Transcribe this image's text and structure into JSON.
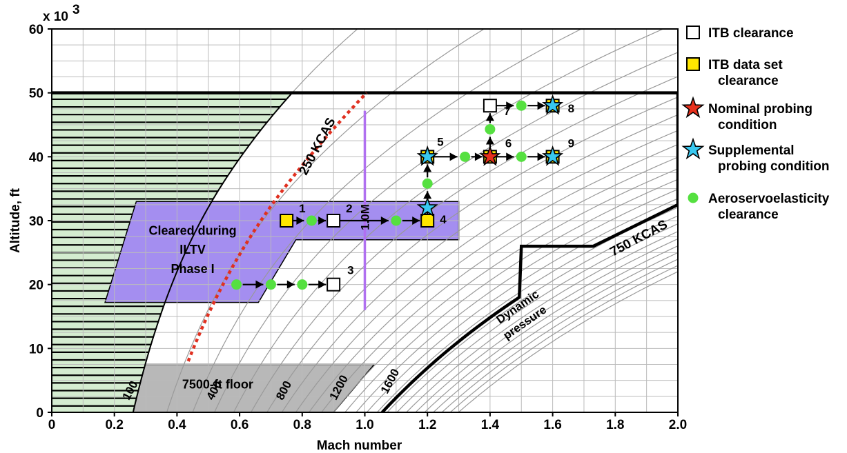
{
  "chart_data": {
    "type": "scatter",
    "title": "",
    "xlabel": "Mach number",
    "ylabel": "Altitude, ft",
    "y_multiplier_label": "x 10",
    "y_multiplier_exp": "3",
    "xlim": [
      0,
      2.0
    ],
    "ylim": [
      0,
      60
    ],
    "x_ticks": [
      "0",
      "0.2",
      "0.4",
      "0.6",
      "0.8",
      "1.0",
      "1.2",
      "1.4",
      "1.6",
      "1.8",
      "2.0"
    ],
    "y_ticks": [
      "0",
      "10",
      "20",
      "30",
      "40",
      "50",
      "60"
    ],
    "grid": true,
    "legend_position": "right",
    "dynamic_pressure_curves": [
      100,
      200,
      300,
      400,
      500,
      600,
      700,
      800,
      900,
      1000,
      1100,
      1200,
      1300,
      1400,
      1500,
      1600,
      1700,
      1800,
      1900,
      2000,
      2100,
      2200,
      2300,
      2400,
      2500
    ],
    "labeled_curves": [
      "100",
      "400",
      "800",
      "1200",
      "1600"
    ],
    "annotations": {
      "kcas_250": "250 KCAS",
      "kcas_750": "750 KCAS",
      "mach_1": "1.0M",
      "cleared_l1": "Cleared during",
      "cleared_l2": "ILTV",
      "cleared_l3": "Phase I",
      "floor": "7500-ft floor",
      "dynq_l1": "Dynamic",
      "dynq_l2": "pressure"
    },
    "legend": [
      {
        "marker": "open-square",
        "lines": [
          "ITB clearance"
        ]
      },
      {
        "marker": "yellow-square",
        "lines": [
          "ITB data set",
          "clearance"
        ]
      },
      {
        "marker": "red-star",
        "lines": [
          "Nominal probing",
          "condition"
        ]
      },
      {
        "marker": "blue-star",
        "lines": [
          "Supplemental",
          "probing condition"
        ]
      },
      {
        "marker": "green-dot",
        "lines": [
          "Aeroservoelasticity",
          "clearance"
        ]
      }
    ],
    "test_points": [
      {
        "label": "1",
        "mach": 0.75,
        "alt": 30,
        "marker": "yellow-square"
      },
      {
        "label": "2",
        "mach": 0.9,
        "alt": 30,
        "marker": "open-square"
      },
      {
        "label": "3",
        "mach": 0.9,
        "alt": 20,
        "marker": "open-square"
      },
      {
        "label": "4",
        "mach": 1.2,
        "alt": 30,
        "marker": "yellow-square"
      },
      {
        "label": "5",
        "mach": 1.2,
        "alt": 40,
        "marker": "yellow-square"
      },
      {
        "label": "6",
        "mach": 1.4,
        "alt": 40,
        "marker": "yellow-square"
      },
      {
        "label": "7",
        "mach": 1.4,
        "alt": 48,
        "marker": "open-square"
      },
      {
        "label": "8",
        "mach": 1.6,
        "alt": 48,
        "marker": "yellow-square"
      },
      {
        "label": "9",
        "mach": 1.6,
        "alt": 40,
        "marker": "yellow-square"
      }
    ],
    "stars": [
      {
        "mach": 1.2,
        "alt": 32,
        "color": "blue"
      },
      {
        "mach": 1.2,
        "alt": 40,
        "color": "blue"
      },
      {
        "mach": 1.4,
        "alt": 40,
        "color": "red"
      },
      {
        "mach": 1.6,
        "alt": 48,
        "color": "blue"
      },
      {
        "mach": 1.6,
        "alt": 40,
        "color": "blue"
      }
    ],
    "ase_points": [
      {
        "mach": 0.59,
        "alt": 20
      },
      {
        "mach": 0.7,
        "alt": 20
      },
      {
        "mach": 0.8,
        "alt": 20
      },
      {
        "mach": 0.83,
        "alt": 30
      },
      {
        "mach": 1.1,
        "alt": 30
      },
      {
        "mach": 1.2,
        "alt": 35.8
      },
      {
        "mach": 1.32,
        "alt": 40
      },
      {
        "mach": 1.5,
        "alt": 40
      },
      {
        "mach": 1.4,
        "alt": 44.3
      },
      {
        "mach": 1.5,
        "alt": 48
      }
    ],
    "arrows": [
      {
        "from": [
          0.59,
          20
        ],
        "to": [
          0.7,
          20
        ]
      },
      {
        "from": [
          0.7,
          20
        ],
        "to": [
          0.8,
          20
        ]
      },
      {
        "from": [
          0.8,
          20
        ],
        "to": [
          0.9,
          20
        ]
      },
      {
        "from": [
          0.75,
          30
        ],
        "to": [
          0.83,
          30
        ]
      },
      {
        "from": [
          0.83,
          30
        ],
        "to": [
          0.9,
          30
        ]
      },
      {
        "from": [
          0.9,
          30
        ],
        "to": [
          1.1,
          30
        ]
      },
      {
        "from": [
          1.1,
          30
        ],
        "to": [
          1.2,
          30
        ]
      },
      {
        "from": [
          1.2,
          30
        ],
        "to": [
          1.2,
          35.8
        ]
      },
      {
        "from": [
          1.2,
          35.8
        ],
        "to": [
          1.2,
          40
        ]
      },
      {
        "from": [
          1.2,
          40
        ],
        "to": [
          1.32,
          40
        ]
      },
      {
        "from": [
          1.32,
          40
        ],
        "to": [
          1.4,
          40
        ]
      },
      {
        "from": [
          1.4,
          40
        ],
        "to": [
          1.5,
          40
        ]
      },
      {
        "from": [
          1.5,
          40
        ],
        "to": [
          1.6,
          40
        ]
      },
      {
        "from": [
          1.4,
          40
        ],
        "to": [
          1.4,
          44.3
        ]
      },
      {
        "from": [
          1.4,
          44.3
        ],
        "to": [
          1.4,
          48
        ]
      },
      {
        "from": [
          1.4,
          48
        ],
        "to": [
          1.5,
          48
        ]
      },
      {
        "from": [
          1.5,
          48
        ],
        "to": [
          1.6,
          48
        ]
      }
    ],
    "colors": {
      "hatch_fill": "#d4ecd0",
      "cleared_region": "#a48ef0",
      "floor_region": "#b8b8b8",
      "kcas_250_line": "#e03020",
      "mach_line": "#b070f0",
      "ase_green": "#55e040",
      "yellow": "#ffe600",
      "red_star": "#e8301c",
      "blue_star": "#38c8f0",
      "grid": "#bbbbbb",
      "curves": "#999999"
    }
  }
}
